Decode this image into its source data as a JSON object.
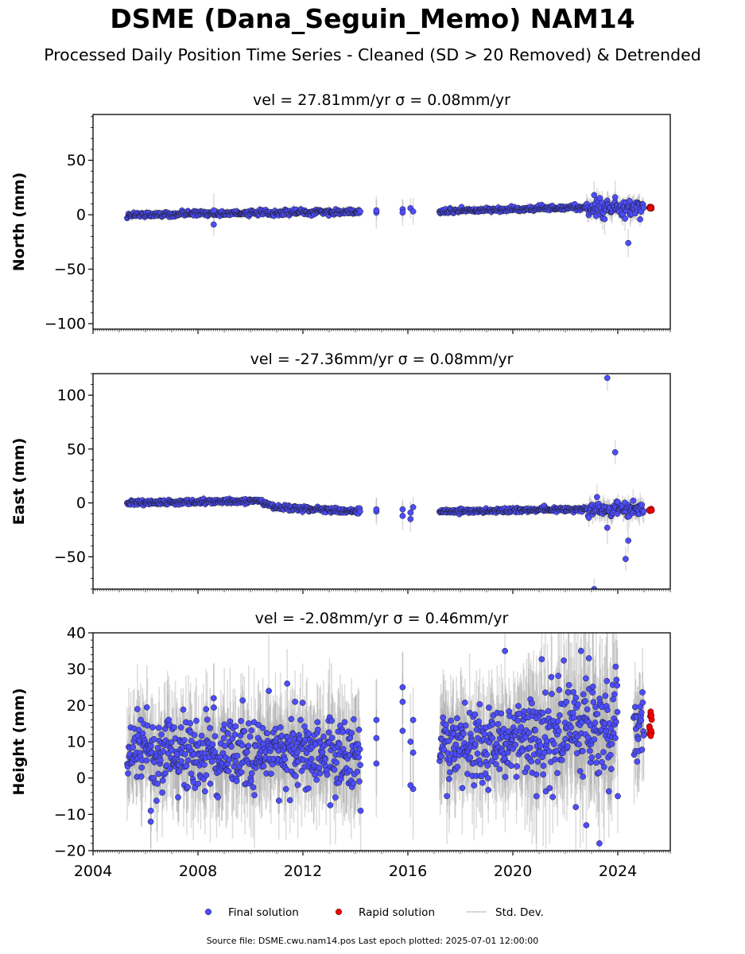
{
  "title": "DSME (Dana_Seguin_Memo) NAM14",
  "subtitle": "Processed Daily Position Time Series - Cleaned (SD > 20 Removed) & Detrended",
  "footer": "Source file: DSME.cwu.nam14.pos  Last epoch plotted: 2025-07-01 12:00:00",
  "colors": {
    "final": "#4d4dff",
    "rapid": "#ee0000",
    "sd": "#999999",
    "edge": "#1a1a1a"
  },
  "legend": [
    {
      "label": "Final solution",
      "marker": "blue-dot"
    },
    {
      "label": "Rapid solution",
      "marker": "red-dot"
    },
    {
      "label": "Std. Dev.",
      "marker": "gray-line"
    }
  ],
  "chart_data": [
    {
      "type": "scatter",
      "title": "vel = 27.81mm/yr   σ = 0.08mm/yr",
      "ylabel": "North (mm)",
      "xlim": [
        2004.0,
        2026.0
      ],
      "ylim": [
        -105,
        92
      ],
      "yticks": [
        -100,
        -50,
        0,
        50
      ],
      "xticks": [
        2004,
        2008,
        2012,
        2016,
        2020,
        2024
      ],
      "show_xtick_labels": false,
      "segments": [
        {
          "from": 2005.3,
          "to": 2014.2,
          "y0": 0,
          "y1": 3,
          "noise": 1.1,
          "sd": 3
        },
        {
          "from": 2017.2,
          "to": 2022.8,
          "y0": 3,
          "y1": 7,
          "noise": 1.0,
          "sd": 3
        },
        {
          "from": 2022.8,
          "to": 2025.0,
          "y0": 6,
          "y1": 6,
          "noise": 3.5,
          "sd": 8
        }
      ],
      "extra_points": [
        [
          2008.6,
          -9
        ],
        [
          2008.6,
          4
        ],
        [
          2014.8,
          2
        ],
        [
          2014.8,
          4
        ],
        [
          2015.8,
          5
        ],
        [
          2015.8,
          2
        ],
        [
          2016.1,
          6
        ],
        [
          2016.2,
          3
        ],
        [
          2023.1,
          18
        ],
        [
          2023.5,
          -4
        ],
        [
          2023.9,
          16
        ],
        [
          2024.4,
          -26
        ]
      ],
      "rapid_x": [
        2025.1,
        2025.5
      ],
      "rapid_y": [
        5.5,
        7.5
      ]
    },
    {
      "type": "scatter",
      "title": "vel = -27.36mm/yr   σ = 0.08mm/yr",
      "ylabel": "East (mm)",
      "xlim": [
        2004.0,
        2026.0
      ],
      "ylim": [
        -80,
        120
      ],
      "yticks": [
        -50,
        0,
        50,
        100
      ],
      "xticks": [
        2004,
        2008,
        2012,
        2016,
        2020,
        2024
      ],
      "show_xtick_labels": false,
      "segments": [
        {
          "from": 2005.3,
          "to": 2010.3,
          "y0": 0,
          "y1": 2,
          "noise": 1.1,
          "sd": 3
        },
        {
          "from": 2010.3,
          "to": 2011.0,
          "y0": 2,
          "y1": -4,
          "noise": 1.1,
          "sd": 3
        },
        {
          "from": 2011.0,
          "to": 2014.2,
          "y0": -4,
          "y1": -8,
          "noise": 1.3,
          "sd": 3
        },
        {
          "from": 2017.2,
          "to": 2022.8,
          "y0": -8,
          "y1": -6,
          "noise": 1.0,
          "sd": 3
        },
        {
          "from": 2022.8,
          "to": 2025.0,
          "y0": -6,
          "y1": -6,
          "noise": 3.0,
          "sd": 8
        }
      ],
      "extra_points": [
        [
          2014.8,
          -8
        ],
        [
          2014.8,
          -6
        ],
        [
          2015.8,
          -12
        ],
        [
          2015.8,
          -6
        ],
        [
          2016.1,
          -15
        ],
        [
          2016.2,
          -4
        ],
        [
          2016.1,
          -9
        ],
        [
          2023.6,
          116
        ],
        [
          2023.6,
          -23
        ],
        [
          2023.9,
          47
        ],
        [
          2024.3,
          -52
        ],
        [
          2024.4,
          -35
        ],
        [
          2023.1,
          -80
        ]
      ],
      "rapid_x": [
        2025.1,
        2025.5
      ],
      "rapid_y": [
        -7.5,
        -5.5
      ]
    },
    {
      "type": "scatter",
      "title": "vel = -2.08mm/yr   σ = 0.46mm/yr",
      "ylabel": "Height (mm)",
      "xlim": [
        2004.0,
        2026.0
      ],
      "ylim": [
        -20,
        40
      ],
      "yticks": [
        -20,
        -10,
        0,
        10,
        20,
        30,
        40
      ],
      "xticks": [
        2004,
        2008,
        2012,
        2016,
        2020,
        2024
      ],
      "show_xtick_labels": true,
      "segments": [
        {
          "from": 2005.3,
          "to": 2014.2,
          "y0": 7,
          "y1": 7,
          "noise": 5.0,
          "sd": 11
        },
        {
          "from": 2017.2,
          "to": 2020.5,
          "y0": 8,
          "y1": 11,
          "noise": 5.0,
          "sd": 11
        },
        {
          "from": 2020.5,
          "to": 2024.0,
          "y0": 12,
          "y1": 14,
          "noise": 7.0,
          "sd": 15
        },
        {
          "from": 2024.6,
          "to": 2025.0,
          "y0": 15,
          "y1": 15,
          "noise": 5.0,
          "sd": 10
        }
      ],
      "extra_points": [
        [
          2010.7,
          24
        ],
        [
          2011.4,
          26
        ],
        [
          2011.7,
          21
        ],
        [
          2008.6,
          22
        ],
        [
          2006.2,
          -12
        ],
        [
          2006.2,
          -9
        ],
        [
          2014.2,
          -9
        ],
        [
          2014.8,
          16
        ],
        [
          2014.8,
          4
        ],
        [
          2014.8,
          11
        ],
        [
          2015.8,
          25
        ],
        [
          2015.8,
          21
        ],
        [
          2015.8,
          13
        ],
        [
          2016.1,
          10
        ],
        [
          2016.2,
          7
        ],
        [
          2016.2,
          -3
        ],
        [
          2016.1,
          -2
        ],
        [
          2016.2,
          16
        ],
        [
          2019.7,
          35
        ],
        [
          2022.6,
          35
        ],
        [
          2022.9,
          33
        ],
        [
          2023.3,
          -18
        ],
        [
          2022.8,
          -13
        ],
        [
          2022.4,
          -8
        ],
        [
          2020.9,
          -5
        ],
        [
          2024.0,
          -5
        ]
      ],
      "rapid_x": [
        2025.1,
        2025.5
      ],
      "rapid_y": [
        11.5,
        18.5
      ]
    }
  ]
}
